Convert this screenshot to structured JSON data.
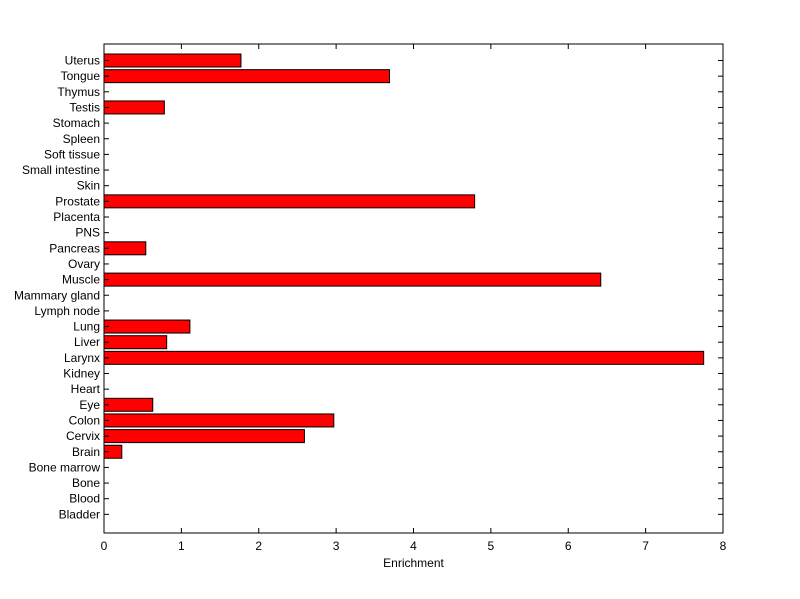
{
  "chart_data": {
    "type": "bar",
    "orientation": "horizontal",
    "xlabel": "Enrichment",
    "xlim": [
      0,
      8
    ],
    "xticks": [
      0,
      1,
      2,
      3,
      4,
      5,
      6,
      7,
      8
    ],
    "grid": false,
    "bar_color": "#ff0000",
    "bar_edge_color": "#000000",
    "categories": [
      "Uterus",
      "Tongue",
      "Thymus",
      "Testis",
      "Stomach",
      "Spleen",
      "Soft tissue",
      "Small intestine",
      "Skin",
      "Prostate",
      "Placenta",
      "PNS",
      "Pancreas",
      "Ovary",
      "Muscle",
      "Mammary gland",
      "Lymph node",
      "Lung",
      "Liver",
      "Larynx",
      "Kidney",
      "Heart",
      "Eye",
      "Colon",
      "Cervix",
      "Brain",
      "Bone marrow",
      "Bone",
      "Blood",
      "Bladder"
    ],
    "values": [
      1.77,
      3.69,
      0,
      0.78,
      0,
      0,
      0,
      0,
      0,
      4.79,
      0,
      0,
      0.54,
      0,
      6.42,
      0,
      0,
      1.11,
      0.81,
      7.75,
      0,
      0,
      0.63,
      2.97,
      2.59,
      0.23,
      0,
      0,
      0,
      0
    ]
  }
}
